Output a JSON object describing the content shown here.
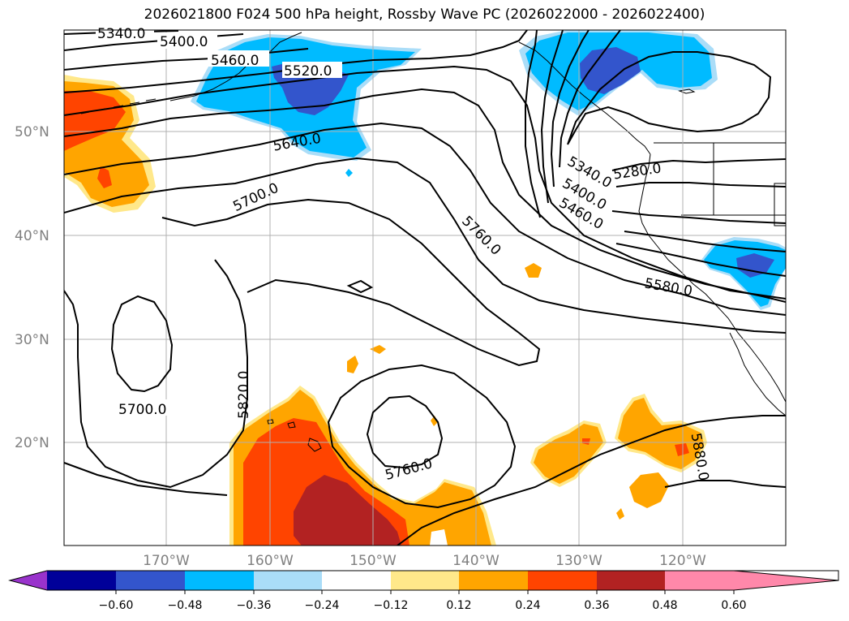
{
  "title": "2026021800 F024 500 hPa height, Rossby Wave PC (2026022000 - 2026022400)",
  "map": {
    "lat_labels": [
      "50°N",
      "40°N",
      "30°N",
      "20°N"
    ],
    "lon_labels": [
      "170°W",
      "160°W",
      "150°W",
      "140°W",
      "130°W",
      "120°W"
    ],
    "contour_labels": [
      "5340.0",
      "5400.0",
      "5460.0",
      "5520.0",
      "5640.0",
      "5700.0",
      "5760.0",
      "5820.0",
      "5700.0",
      "5760.0",
      "5340.0",
      "5400.0",
      "5460.0",
      "5280.0",
      "5580.0",
      "5880.0"
    ]
  },
  "colorbar": {
    "ticks": [
      "−0.60",
      "−0.48",
      "−0.36",
      "−0.24",
      "−0.12",
      "0.12",
      "0.24",
      "0.36",
      "0.48",
      "0.60"
    ],
    "colors": [
      "#9933cc",
      "#000099",
      "#3355cc",
      "#00bbff",
      "#aaddf8",
      "#ffffff",
      "#ffe88a",
      "#ffa500",
      "#ff4400",
      "#b22222",
      "#ff88aa"
    ]
  }
}
